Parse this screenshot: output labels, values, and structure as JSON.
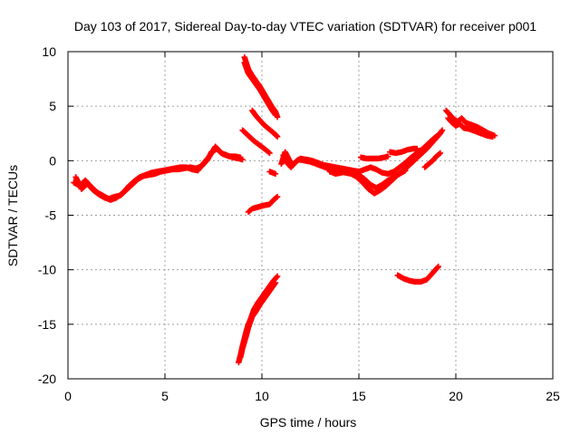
{
  "chart_data": {
    "type": "scatter",
    "title": "Day 103 of 2017, Sidereal Day-to-day VTEC variation (SDTVAR) for receiver p001",
    "xlabel": "GPS time / hours",
    "ylabel": "SDTVAR / TECUs",
    "xlim": [
      0,
      25
    ],
    "ylim": [
      -20,
      10
    ],
    "xticks": [
      0,
      5,
      10,
      15,
      20,
      25
    ],
    "yticks": [
      -20,
      -15,
      -10,
      -5,
      0,
      5,
      10
    ],
    "grid": true,
    "marker": "plus",
    "color": "#ff0000",
    "series": [
      {
        "points": [
          [
            0.3,
            -2.0
          ],
          [
            0.6,
            -2.3
          ],
          [
            0.9,
            -1.8
          ],
          [
            1.2,
            -2.4
          ],
          [
            1.5,
            -2.9
          ],
          [
            1.8,
            -3.2
          ],
          [
            2.1,
            -3.5
          ],
          [
            2.4,
            -3.3
          ],
          [
            2.7,
            -3.2
          ],
          [
            3.0,
            -2.7
          ],
          [
            3.3,
            -2.2
          ],
          [
            3.6,
            -1.7
          ],
          [
            3.9,
            -1.4
          ],
          [
            4.2,
            -1.3
          ],
          [
            4.5,
            -1.2
          ],
          [
            4.8,
            -1.0
          ],
          [
            5.1,
            -0.9
          ],
          [
            5.4,
            -0.8
          ],
          [
            5.7,
            -0.8
          ],
          [
            6.0,
            -0.7
          ],
          [
            6.3,
            -0.6
          ],
          [
            6.6,
            -0.7
          ],
          [
            6.9,
            -0.5
          ],
          [
            7.2,
            0.1
          ],
          [
            7.4,
            0.8
          ],
          [
            7.7,
            1.1
          ],
          [
            7.9,
            0.7
          ],
          [
            8.2,
            0.5
          ],
          [
            8.5,
            0.3
          ],
          [
            8.8,
            0.2
          ],
          [
            9.0,
            0.1
          ]
        ]
      },
      {
        "points": [
          [
            0.4,
            -1.5
          ],
          [
            0.7,
            -2.6
          ],
          [
            1.0,
            -2.1
          ],
          [
            1.3,
            -2.7
          ],
          [
            1.6,
            -3.1
          ],
          [
            1.9,
            -3.4
          ],
          [
            2.2,
            -3.6
          ],
          [
            2.5,
            -3.4
          ],
          [
            2.8,
            -3.0
          ],
          [
            3.1,
            -2.4
          ],
          [
            3.4,
            -1.9
          ],
          [
            3.7,
            -1.5
          ],
          [
            4.0,
            -1.3
          ],
          [
            4.3,
            -1.1
          ],
          [
            4.6,
            -1.0
          ],
          [
            4.9,
            -0.9
          ],
          [
            5.2,
            -0.8
          ],
          [
            5.5,
            -0.7
          ],
          [
            5.8,
            -0.6
          ],
          [
            6.1,
            -0.6
          ],
          [
            6.4,
            -0.8
          ],
          [
            6.7,
            -0.9
          ],
          [
            7.0,
            -0.2
          ],
          [
            7.3,
            0.4
          ],
          [
            7.6,
            1.3
          ],
          [
            7.8,
            0.9
          ],
          [
            8.0,
            0.6
          ],
          [
            8.3,
            0.4
          ],
          [
            8.6,
            0.4
          ],
          [
            8.9,
            0.3
          ]
        ]
      },
      {
        "points": [
          [
            9.1,
            9.5
          ],
          [
            9.3,
            8.4
          ],
          [
            9.5,
            7.8
          ],
          [
            9.7,
            7.3
          ],
          [
            9.9,
            6.8
          ],
          [
            10.1,
            6.2
          ],
          [
            10.3,
            5.6
          ],
          [
            10.5,
            5.0
          ],
          [
            10.7,
            4.5
          ],
          [
            10.8,
            4.0
          ]
        ]
      },
      {
        "points": [
          [
            9.1,
            9.0
          ],
          [
            9.3,
            8.0
          ],
          [
            9.5,
            7.5
          ],
          [
            9.7,
            7.0
          ],
          [
            9.9,
            6.5
          ],
          [
            10.1,
            5.9
          ],
          [
            10.3,
            5.3
          ],
          [
            10.5,
            4.7
          ],
          [
            10.7,
            4.2
          ]
        ]
      },
      {
        "points": [
          [
            9.5,
            4.6
          ],
          [
            9.7,
            4.1
          ],
          [
            9.9,
            3.7
          ],
          [
            10.1,
            3.3
          ],
          [
            10.3,
            3.0
          ],
          [
            10.5,
            2.7
          ],
          [
            10.7,
            2.4
          ],
          [
            10.8,
            2.2
          ]
        ]
      },
      {
        "points": [
          [
            9.0,
            2.8
          ],
          [
            9.3,
            2.3
          ],
          [
            9.6,
            1.8
          ],
          [
            9.9,
            1.4
          ],
          [
            10.2,
            1.0
          ],
          [
            10.4,
            0.7
          ]
        ]
      },
      {
        "points": [
          [
            10.4,
            -1.0
          ],
          [
            10.7,
            -1.2
          ]
        ]
      },
      {
        "points": [
          [
            9.3,
            -4.7
          ],
          [
            9.5,
            -4.4
          ],
          [
            9.7,
            -4.3
          ],
          [
            9.9,
            -4.2
          ],
          [
            10.1,
            -4.1
          ],
          [
            10.4,
            -4.0
          ],
          [
            10.6,
            -3.6
          ],
          [
            10.8,
            -3.3
          ]
        ]
      },
      {
        "points": [
          [
            8.8,
            -18.5
          ],
          [
            8.9,
            -17.8
          ],
          [
            9.0,
            -17.0
          ],
          [
            9.1,
            -16.3
          ],
          [
            9.2,
            -15.6
          ],
          [
            9.3,
            -15.0
          ],
          [
            9.4,
            -14.6
          ],
          [
            9.5,
            -14.1
          ],
          [
            9.6,
            -13.6
          ],
          [
            9.8,
            -13.0
          ],
          [
            10.0,
            -12.5
          ],
          [
            10.2,
            -12.0
          ],
          [
            10.4,
            -11.5
          ],
          [
            10.6,
            -11.0
          ],
          [
            10.8,
            -10.6
          ]
        ]
      },
      {
        "points": [
          [
            8.9,
            -18.0
          ],
          [
            9.0,
            -17.2
          ],
          [
            9.1,
            -16.6
          ],
          [
            9.2,
            -16.0
          ],
          [
            9.3,
            -15.3
          ],
          [
            9.4,
            -14.8
          ],
          [
            9.5,
            -14.3
          ],
          [
            9.7,
            -13.8
          ],
          [
            9.9,
            -13.2
          ],
          [
            10.1,
            -12.7
          ],
          [
            10.3,
            -12.2
          ],
          [
            10.5,
            -11.7
          ],
          [
            10.7,
            -11.2
          ]
        ]
      },
      {
        "points": [
          [
            11.0,
            -0.3
          ],
          [
            11.2,
            0.8
          ],
          [
            11.4,
            0.1
          ],
          [
            11.6,
            -0.4
          ],
          [
            11.8,
            0.0
          ],
          [
            12.0,
            0.2
          ],
          [
            12.3,
            0.1
          ],
          [
            12.6,
            0.0
          ],
          [
            12.9,
            -0.2
          ],
          [
            13.2,
            -0.4
          ],
          [
            13.5,
            -0.5
          ],
          [
            13.8,
            -0.6
          ],
          [
            14.1,
            -0.7
          ],
          [
            14.4,
            -0.8
          ],
          [
            14.7,
            -0.9
          ],
          [
            15.0,
            -1.0
          ],
          [
            15.3,
            -0.8
          ],
          [
            15.6,
            -0.6
          ],
          [
            15.9,
            -0.8
          ],
          [
            16.2,
            -1.1
          ],
          [
            16.5,
            -1.2
          ],
          [
            16.8,
            -1.0
          ],
          [
            17.1,
            -0.6
          ],
          [
            17.4,
            -0.2
          ],
          [
            17.7,
            0.3
          ],
          [
            18.0,
            0.7
          ],
          [
            18.3,
            1.1
          ],
          [
            18.6,
            1.6
          ],
          [
            18.9,
            2.1
          ],
          [
            19.2,
            2.5
          ]
        ]
      },
      {
        "points": [
          [
            11.1,
            0.5
          ],
          [
            11.3,
            -0.2
          ],
          [
            11.5,
            -0.6
          ],
          [
            11.7,
            -0.2
          ],
          [
            11.9,
            0.1
          ],
          [
            12.2,
            0.0
          ],
          [
            12.5,
            -0.1
          ],
          [
            12.8,
            -0.3
          ],
          [
            13.1,
            -0.5
          ],
          [
            13.4,
            -0.7
          ],
          [
            13.7,
            -0.8
          ],
          [
            14.0,
            -1.0
          ],
          [
            14.3,
            -1.1
          ],
          [
            14.6,
            -1.2
          ],
          [
            14.9,
            -1.5
          ],
          [
            15.2,
            -2.0
          ],
          [
            15.5,
            -2.6
          ],
          [
            15.8,
            -3.0
          ],
          [
            16.1,
            -2.7
          ],
          [
            16.4,
            -2.3
          ],
          [
            16.7,
            -1.8
          ],
          [
            17.0,
            -1.3
          ],
          [
            17.3,
            -0.9
          ],
          [
            17.6,
            -0.4
          ],
          [
            17.9,
            0.1
          ],
          [
            18.2,
            0.6
          ],
          [
            18.5,
            1.1
          ],
          [
            18.8,
            1.7
          ],
          [
            19.1,
            2.3
          ],
          [
            19.3,
            2.8
          ]
        ]
      },
      {
        "points": [
          [
            13.5,
            -1.0
          ],
          [
            13.8,
            -1.2
          ],
          [
            14.1,
            -1.1
          ],
          [
            14.4,
            -0.9
          ],
          [
            14.7,
            -1.0
          ],
          [
            15.0,
            -1.3
          ],
          [
            15.3,
            -1.7
          ],
          [
            15.6,
            -2.2
          ],
          [
            15.9,
            -2.5
          ],
          [
            16.2,
            -2.2
          ],
          [
            16.5,
            -1.8
          ],
          [
            16.8,
            -1.5
          ],
          [
            17.1,
            -1.2
          ],
          [
            17.4,
            -0.9
          ]
        ]
      },
      {
        "points": [
          [
            15.1,
            0.3
          ],
          [
            15.4,
            0.2
          ],
          [
            15.7,
            0.2
          ],
          [
            16.0,
            0.2
          ],
          [
            16.3,
            0.3
          ],
          [
            16.5,
            0.4
          ]
        ]
      },
      {
        "points": [
          [
            16.6,
            0.8
          ],
          [
            16.9,
            0.7
          ],
          [
            17.2,
            0.8
          ],
          [
            17.5,
            1.0
          ],
          [
            17.8,
            1.1
          ],
          [
            18.0,
            1.1
          ]
        ]
      },
      {
        "points": [
          [
            19.5,
            4.6
          ],
          [
            19.7,
            4.2
          ],
          [
            19.9,
            3.8
          ],
          [
            20.1,
            3.6
          ],
          [
            20.3,
            3.9
          ],
          [
            20.5,
            3.5
          ],
          [
            20.8,
            3.3
          ],
          [
            21.1,
            3.1
          ],
          [
            21.4,
            2.8
          ],
          [
            21.7,
            2.5
          ],
          [
            22.0,
            2.3
          ]
        ]
      },
      {
        "points": [
          [
            19.6,
            3.9
          ],
          [
            19.8,
            3.5
          ],
          [
            20.0,
            3.2
          ],
          [
            20.2,
            3.4
          ],
          [
            20.4,
            3.0
          ],
          [
            20.7,
            2.9
          ],
          [
            21.0,
            2.7
          ],
          [
            21.3,
            2.5
          ],
          [
            21.6,
            2.3
          ],
          [
            21.9,
            2.2
          ]
        ]
      },
      {
        "points": [
          [
            18.4,
            -0.6
          ],
          [
            18.6,
            -0.3
          ],
          [
            18.8,
            0.0
          ],
          [
            19.0,
            0.4
          ],
          [
            19.2,
            0.7
          ]
        ]
      },
      {
        "points": [
          [
            17.0,
            -10.5
          ],
          [
            17.3,
            -10.8
          ],
          [
            17.6,
            -11.0
          ],
          [
            17.9,
            -11.1
          ],
          [
            18.2,
            -11.1
          ],
          [
            18.5,
            -10.9
          ],
          [
            18.7,
            -10.5
          ],
          [
            18.9,
            -10.1
          ],
          [
            19.1,
            -9.7
          ]
        ]
      }
    ]
  }
}
